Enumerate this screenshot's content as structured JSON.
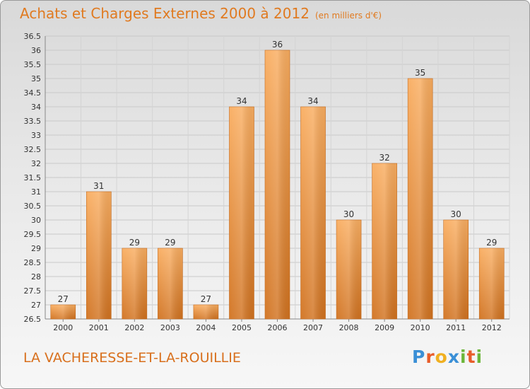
{
  "header": {
    "title": "Achats et Charges Externes 2000 à 2012",
    "subtitle": "(en milliers d'€)"
  },
  "footer": {
    "place": "LA VACHERESSE-ET-LA-ROUILLIE",
    "logo": "Proxiti"
  },
  "colors": {
    "bar_light": "#f7a85a",
    "bar_dark": "#d47421",
    "title": "#e07a20"
  },
  "chart_data": {
    "type": "bar",
    "title": "Achats et Charges Externes 2000 à 2012",
    "subtitle": "(en milliers d'€)",
    "categories": [
      "2000",
      "2001",
      "2002",
      "2003",
      "2004",
      "2005",
      "2006",
      "2007",
      "2008",
      "2009",
      "2010",
      "2011",
      "2012"
    ],
    "values": [
      27,
      31,
      29,
      29,
      27,
      34,
      36,
      34,
      30,
      32,
      35,
      30,
      29
    ],
    "ylim": [
      26.5,
      36.5
    ],
    "yticks": [
      "26.5",
      "27",
      "27.5",
      "28",
      "28.5",
      "29",
      "29.5",
      "30",
      "30.5",
      "31",
      "31.5",
      "32",
      "32.5",
      "33",
      "33.5",
      "34",
      "34.5",
      "35",
      "35.5",
      "36",
      "36.5"
    ],
    "grid": true,
    "legend": "none"
  }
}
